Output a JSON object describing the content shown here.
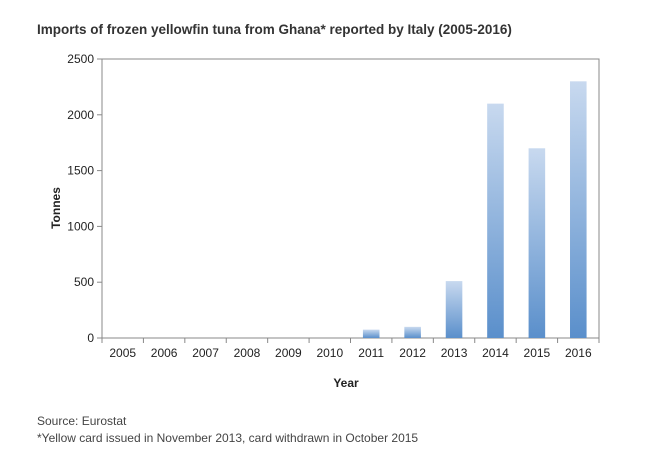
{
  "chart_data": {
    "type": "bar",
    "title": "Imports of frozen yellowfin tuna from Ghana* reported by Italy (2005-2016)",
    "xlabel": "Year",
    "ylabel": "Tonnes",
    "categories": [
      "2005",
      "2006",
      "2007",
      "2008",
      "2009",
      "2010",
      "2011",
      "2012",
      "2013",
      "2014",
      "2015",
      "2016"
    ],
    "values": [
      0,
      0,
      0,
      0,
      0,
      0,
      75,
      100,
      510,
      2100,
      1700,
      2300
    ],
    "ylim": [
      0,
      2500
    ],
    "yticks": [
      "0",
      "500",
      "1000",
      "1500",
      "2000",
      "2500"
    ],
    "grid": false,
    "legend": "none",
    "bar_color_top": "#c8d9ef",
    "bar_color_bottom": "#5a8fcb"
  },
  "footer": {
    "source": "Source: Eurostat",
    "footnote": "*Yellow card issued in November 2013, card withdrawn in October 2015"
  }
}
